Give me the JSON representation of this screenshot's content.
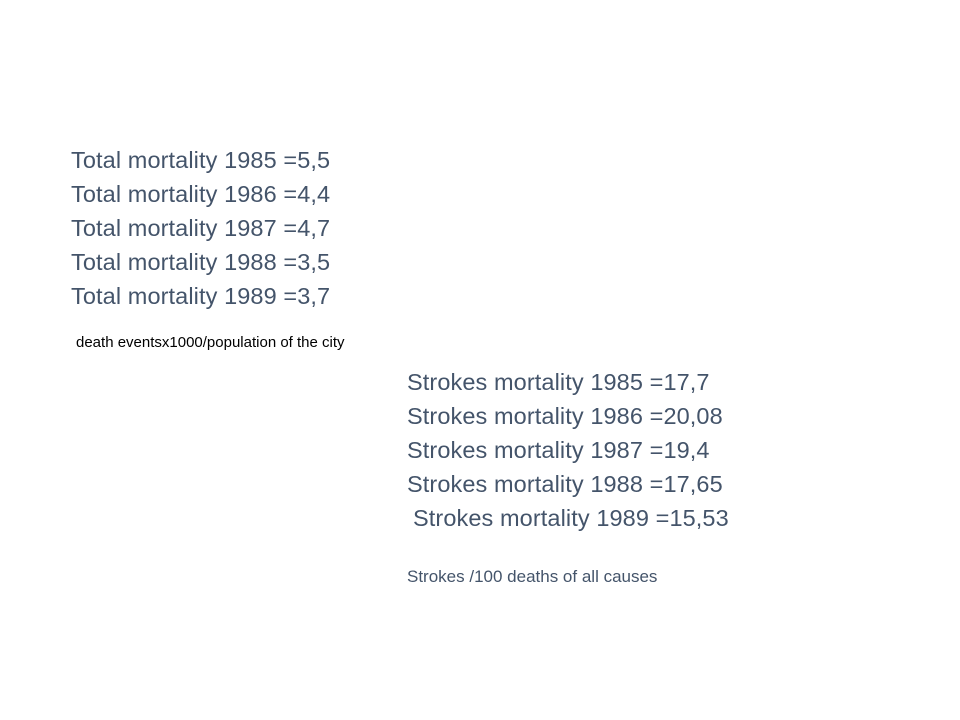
{
  "total_mortality": {
    "lines": [
      "Total mortality 1985 =5,5",
      "Total mortality 1986 =4,4",
      "Total mortality 1987 =4,7",
      "Total mortality 1988 =3,5",
      "Total mortality 1989 =3,7"
    ],
    "note": "death eventsx1000/population of the city"
  },
  "strokes_mortality": {
    "lines": [
      "Strokes mortality 1985 =17,7",
      "Strokes mortality 1986 =20,08",
      "Strokes mortality 1987 =19,4",
      "Strokes mortality 1988 =17,65",
      "Strokes mortality 1989 =15,53"
    ],
    "note": "Strokes /100 deaths of all causes"
  },
  "colors": {
    "text": "#44546a",
    "note": "#000000",
    "background": "#ffffff"
  }
}
